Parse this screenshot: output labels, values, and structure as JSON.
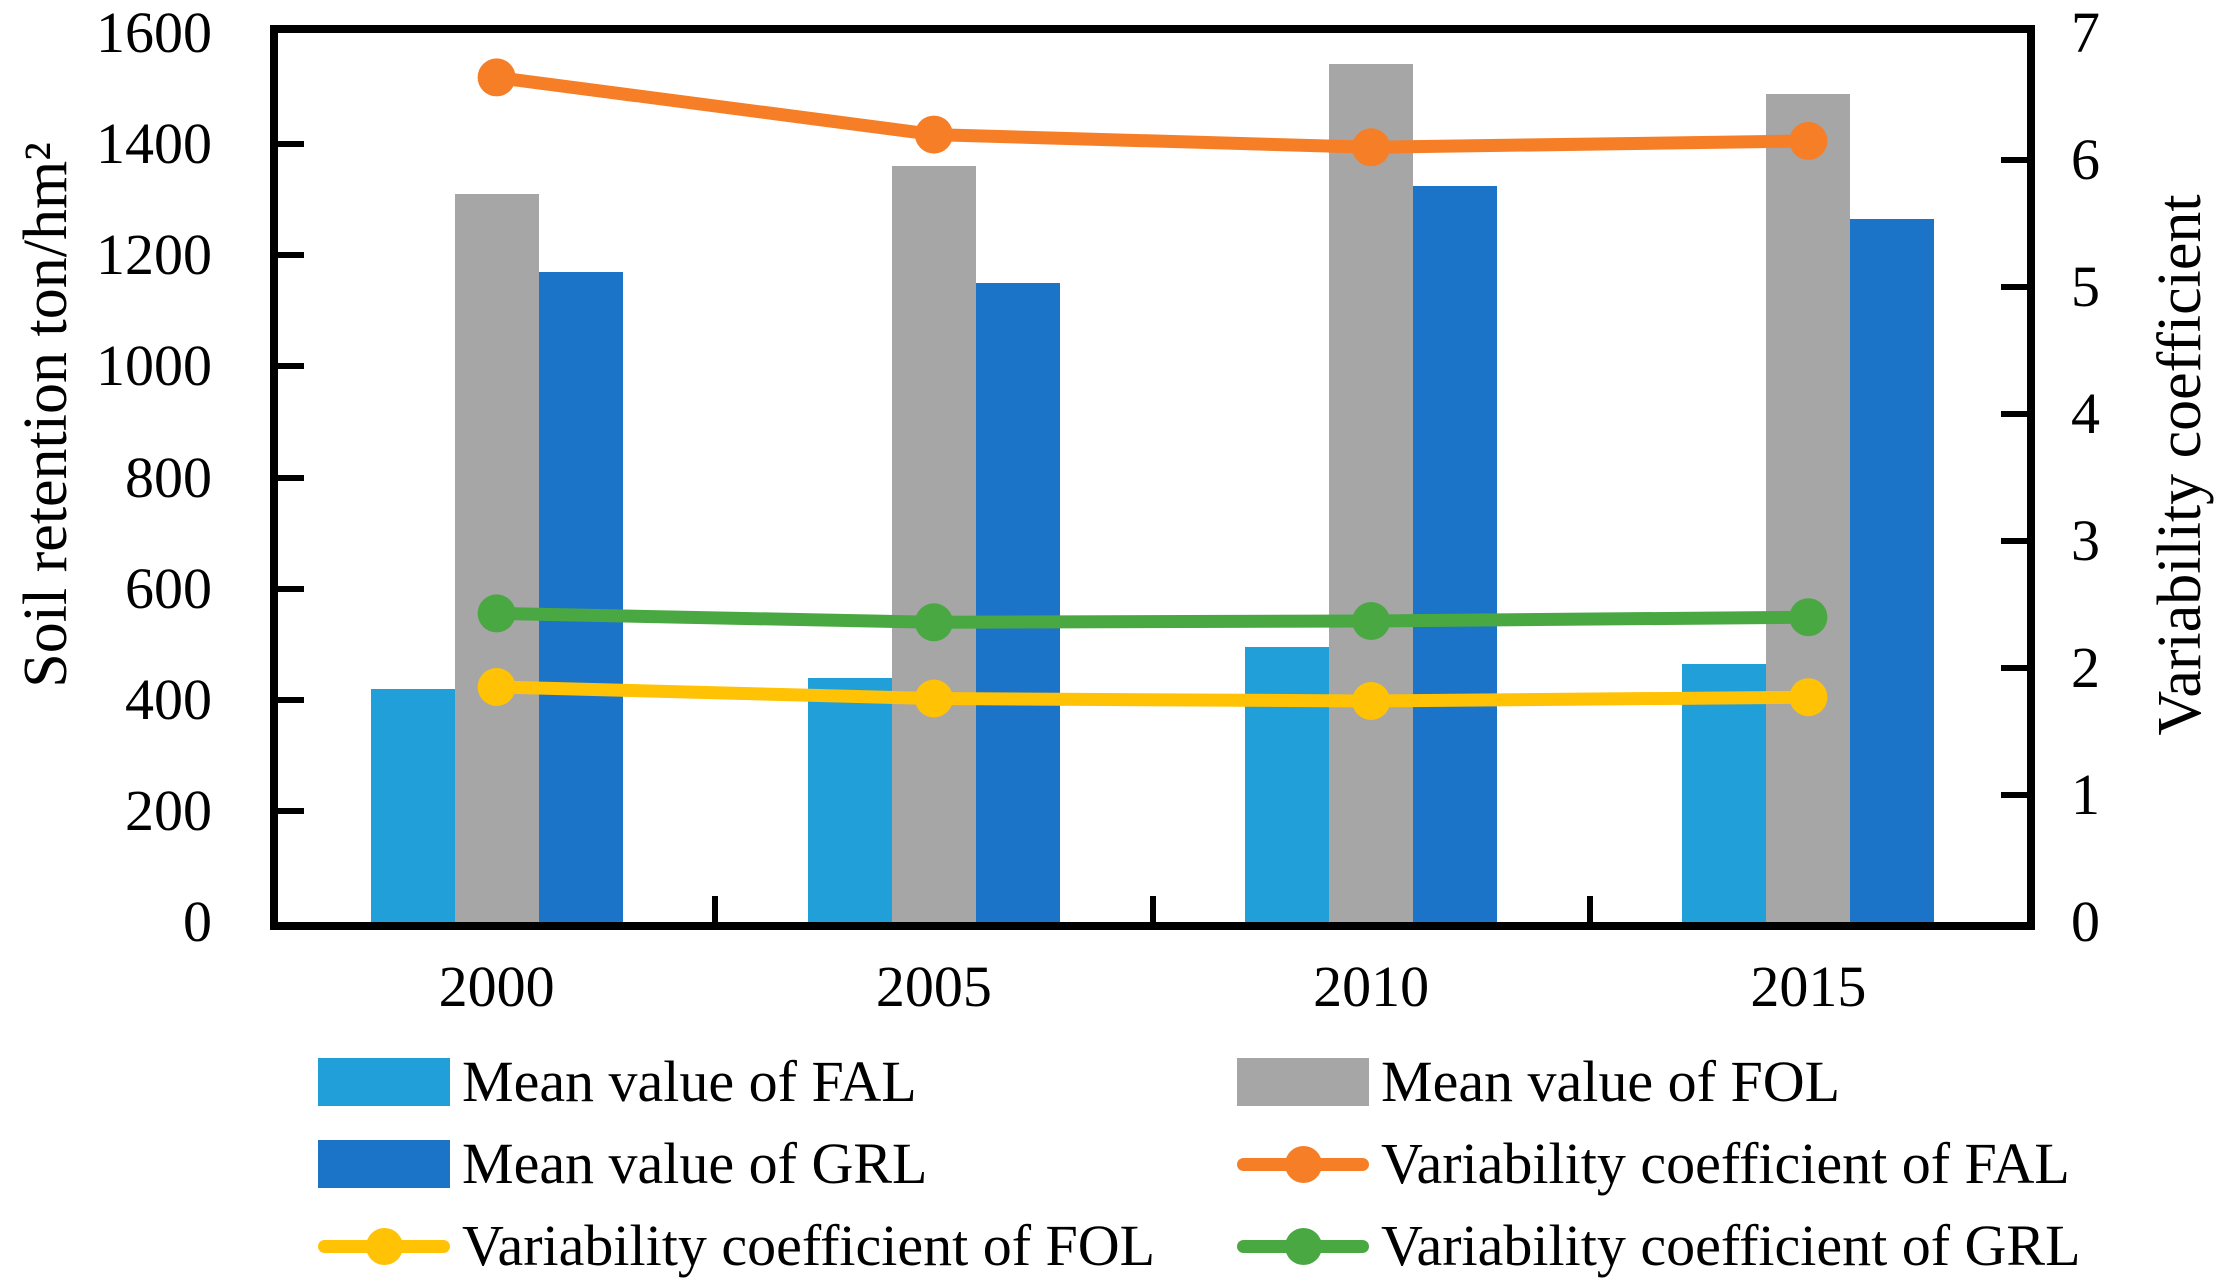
{
  "chart_data": {
    "type": "bar+line",
    "title": "",
    "categories": [
      "2000",
      "2005",
      "2010",
      "2015"
    ],
    "left_axis": {
      "title": "Soil retention ton/hm²",
      "min": 0,
      "max": 1600,
      "step": 200,
      "tick_labels": [
        "0",
        "200",
        "400",
        "600",
        "800",
        "1000",
        "1200",
        "1400",
        "1600"
      ]
    },
    "right_axis": {
      "title": "Variability coefficient",
      "min": 0,
      "max": 7,
      "step": 1,
      "tick_labels": [
        "0",
        "1",
        "2",
        "3",
        "4",
        "5",
        "6",
        "7"
      ]
    },
    "grid": "off",
    "series": [
      {
        "name": "Mean value of FAL",
        "type": "bar",
        "axis": "left",
        "color": "#219FD9",
        "values": [
          420,
          440,
          495,
          465
        ]
      },
      {
        "name": "Mean value of FOL",
        "type": "bar",
        "axis": "left",
        "color": "#A6A6A6",
        "values": [
          1310,
          1360,
          1545,
          1490
        ]
      },
      {
        "name": "Mean value of GRL",
        "type": "bar",
        "axis": "left",
        "color": "#1B74C8",
        "values": [
          1170,
          1150,
          1325,
          1265
        ]
      },
      {
        "name": "Variability coefficient of FAL",
        "type": "line",
        "axis": "right",
        "color": "#F57E27",
        "values": [
          6.65,
          6.2,
          6.1,
          6.15
        ]
      },
      {
        "name": "Variability coefficient of FOL",
        "type": "line",
        "axis": "right",
        "color": "#FFC205",
        "values": [
          1.85,
          1.76,
          1.74,
          1.77
        ]
      },
      {
        "name": "Variability coefficient of GRL",
        "type": "line",
        "axis": "right",
        "color": "#4AA843",
        "values": [
          2.43,
          2.36,
          2.37,
          2.4
        ]
      }
    ],
    "legend": {
      "position": "bottom",
      "columns": 2,
      "items": [
        {
          "label": "Mean value of FAL",
          "symbol": "bar",
          "color": "#219FD9",
          "col": 0,
          "row": 0
        },
        {
          "label": "Mean value of FOL",
          "symbol": "bar",
          "color": "#A6A6A6",
          "col": 1,
          "row": 0
        },
        {
          "label": "Mean value of GRL",
          "symbol": "bar",
          "color": "#1B74C8",
          "col": 0,
          "row": 1
        },
        {
          "label": "Variability coefficient of FAL",
          "symbol": "line",
          "color": "#F57E27",
          "col": 1,
          "row": 1
        },
        {
          "label": "Variability coefficient of FOL",
          "symbol": "line",
          "color": "#FFC205",
          "col": 0,
          "row": 2
        },
        {
          "label": "Variability coefficient of GRL",
          "symbol": "line",
          "color": "#4AA843",
          "col": 1,
          "row": 2
        }
      ]
    }
  }
}
